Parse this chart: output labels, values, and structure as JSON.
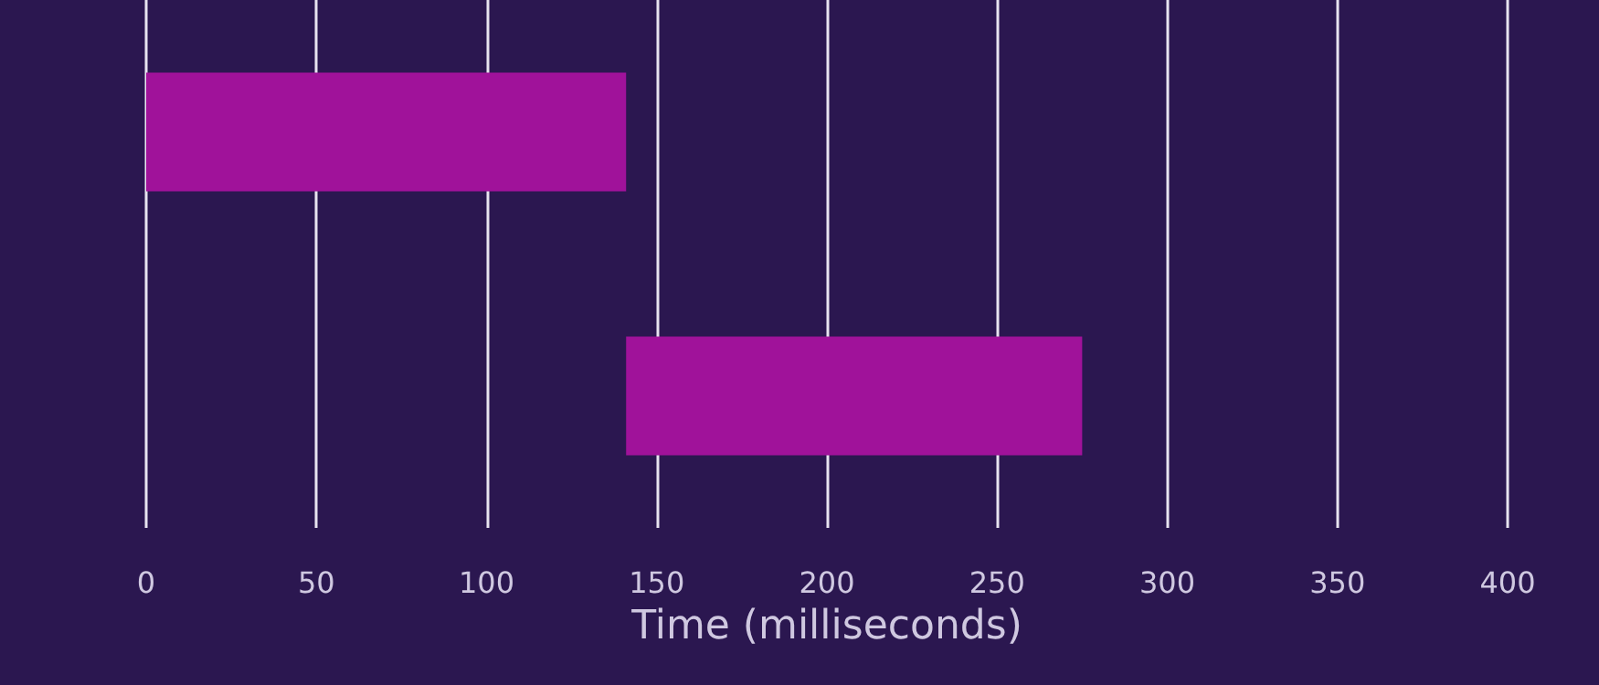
{
  "chart_data": {
    "type": "bar",
    "orientation": "horizontal",
    "xlabel": "Time (milliseconds)",
    "categories": [
      null,
      null
    ],
    "base": [
      0,
      141
    ],
    "values": [
      141,
      134
    ],
    "color": "#a0129a",
    "xlim": [
      0,
      400
    ],
    "xticks": [
      0,
      50,
      100,
      150,
      200,
      250,
      300,
      350,
      400
    ],
    "grid": "x",
    "tick_labels": "x"
  }
}
